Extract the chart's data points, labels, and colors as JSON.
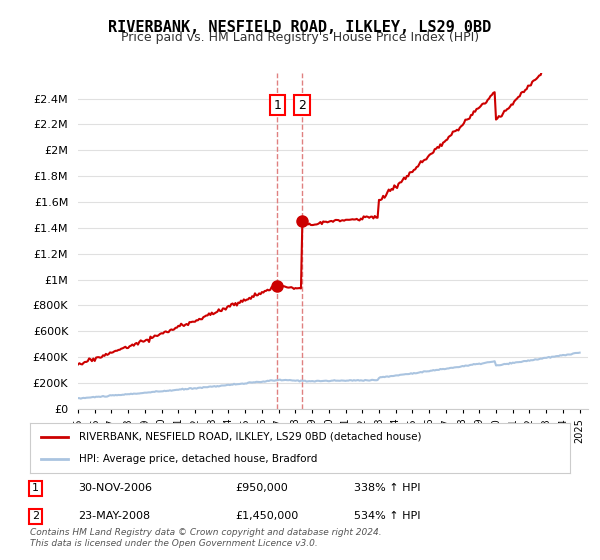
{
  "title": "RIVERBANK, NESFIELD ROAD, ILKLEY, LS29 0BD",
  "subtitle": "Price paid vs. HM Land Registry's House Price Index (HPI)",
  "ylabel_ticks": [
    "£0",
    "£200K",
    "£400K",
    "£600K",
    "£800K",
    "£1M",
    "£1.2M",
    "£1.4M",
    "£1.6M",
    "£1.8M",
    "£2M",
    "£2.2M",
    "£2.4M"
  ],
  "ylim": [
    0,
    2600000
  ],
  "yticks": [
    0,
    200000,
    400000,
    600000,
    800000,
    1000000,
    1200000,
    1400000,
    1600000,
    1800000,
    2000000,
    2200000,
    2400000
  ],
  "x_start_year": 1995,
  "x_end_year": 2025,
  "hpi_color": "#aac4e0",
  "price_color": "#cc0000",
  "marker_color": "#cc0000",
  "vline_color": "#e08080",
  "legend_label_red": "RIVERBANK, NESFIELD ROAD, ILKLEY, LS29 0BD (detached house)",
  "legend_label_blue": "HPI: Average price, detached house, Bradford",
  "transaction1_label": "1",
  "transaction1_date": "30-NOV-2006",
  "transaction1_price": "£950,000",
  "transaction1_hpi": "338% ↑ HPI",
  "transaction1_year": 2006.92,
  "transaction1_value": 950000,
  "transaction2_label": "2",
  "transaction2_date": "23-MAY-2008",
  "transaction2_price": "£1,450,000",
  "transaction2_hpi": "534% ↑ HPI",
  "transaction2_year": 2008.39,
  "transaction2_value": 1450000,
  "footer": "Contains HM Land Registry data © Crown copyright and database right 2024.\nThis data is licensed under the Open Government Licence v3.0.",
  "background_color": "#ffffff",
  "grid_color": "#e0e0e0"
}
